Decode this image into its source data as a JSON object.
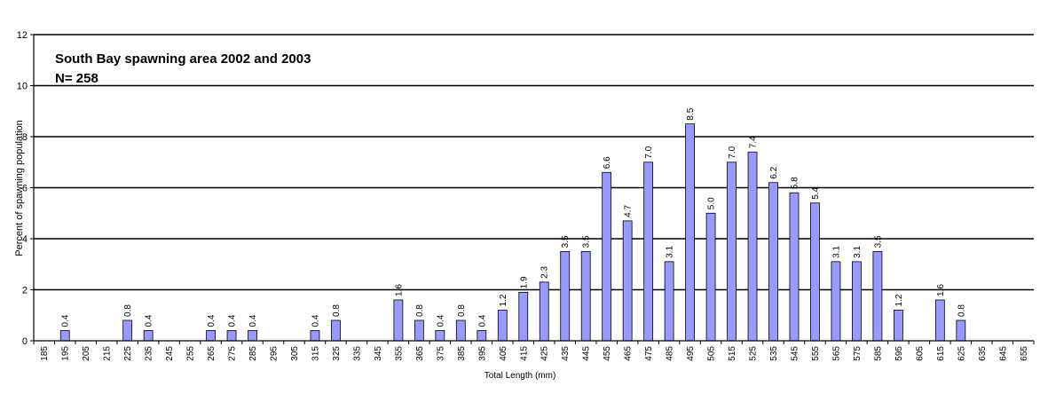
{
  "chart_data": {
    "type": "bar",
    "title": "South Bay spawning area 2002 and 2003",
    "subtitle": "N= 258",
    "xlabel": "Total Length (mm)",
    "ylabel": "Percent of spawning population",
    "ylim": [
      0,
      12
    ],
    "yticks": [
      0,
      2,
      4,
      6,
      8,
      10,
      12
    ],
    "grid": true,
    "legend": "none",
    "bar_color": "#9999ff",
    "categories": [
      "185",
      "195",
      "205",
      "215",
      "225",
      "235",
      "245",
      "255",
      "265",
      "275",
      "285",
      "295",
      "305",
      "315",
      "325",
      "335",
      "345",
      "355",
      "365",
      "375",
      "385",
      "395",
      "405",
      "415",
      "425",
      "435",
      "445",
      "455",
      "465",
      "475",
      "485",
      "495",
      "505",
      "515",
      "525",
      "535",
      "545",
      "555",
      "565",
      "575",
      "585",
      "595",
      "605",
      "615",
      "625",
      "635",
      "645",
      "655"
    ],
    "values": [
      null,
      0.4,
      null,
      null,
      0.8,
      0.4,
      null,
      null,
      0.4,
      0.4,
      0.4,
      null,
      null,
      0.4,
      0.8,
      null,
      null,
      1.6,
      0.8,
      0.4,
      0.8,
      0.4,
      1.2,
      1.9,
      2.3,
      3.5,
      3.5,
      6.6,
      4.7,
      7.0,
      3.1,
      8.5,
      5.0,
      7.0,
      7.4,
      6.2,
      5.8,
      5.4,
      3.1,
      3.1,
      3.5,
      1.2,
      null,
      1.6,
      0.8,
      null,
      null,
      null
    ],
    "data_labels": [
      "",
      "0.4",
      "",
      "",
      "0.8",
      "0.4",
      "",
      "",
      "0.4",
      "0.4",
      "0.4",
      "",
      "",
      "0.4",
      "0.8",
      "",
      "",
      "1.6",
      "0.8",
      "0.4",
      "0.8",
      "0.4",
      "1.2",
      "1.9",
      "2.3",
      "3.5",
      "3.5",
      "6.6",
      "4.7",
      "7.0",
      "3.1",
      "8.5",
      "5.0",
      "7.0",
      "7.4",
      "6.2",
      "5.8",
      "5.4",
      "3.1",
      "3.1",
      "3.5",
      "1.2",
      "",
      "1.6",
      "0.8",
      "",
      "",
      ""
    ]
  }
}
